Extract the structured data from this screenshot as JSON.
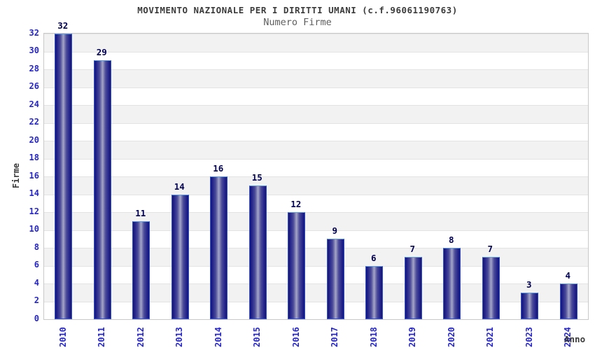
{
  "chart_data": {
    "type": "bar",
    "title": "MOVIMENTO NAZIONALE PER I DIRITTI UMANI (c.f.96061190763)",
    "subtitle": "Numero Firme",
    "xlabel": "Anno",
    "ylabel": "Firme",
    "categories": [
      "2010",
      "2011",
      "2012",
      "2013",
      "2014",
      "2015",
      "2016",
      "2017",
      "2018",
      "2019",
      "2020",
      "2021",
      "2023",
      "2024"
    ],
    "values": [
      32,
      29,
      11,
      14,
      16,
      15,
      12,
      9,
      6,
      7,
      8,
      7,
      3,
      4
    ],
    "ylim": [
      0,
      32
    ],
    "ytick_step": 2,
    "grid": "horizontal alternating bands",
    "legend": "none",
    "bar_labels_shown": true,
    "colors": {
      "background": "#ffffff",
      "band_gray": "#f2f2f2",
      "band_white": "#ffffff",
      "grid_line": "#e3e3e3",
      "plot_border": "#c9c9c9",
      "bar_dark": "#171770",
      "bar_mid": "#20208a",
      "bar_light": "#a6a6c8",
      "bar_border": "#3550cf",
      "bar_top_highlight": "#5f9fe0",
      "tick_label": "#2525c8",
      "value_label": "#000055",
      "axis_title": "#3b3b3b",
      "title_color": "#3b3b3b",
      "subtitle_color": "#5e5e5e"
    }
  }
}
